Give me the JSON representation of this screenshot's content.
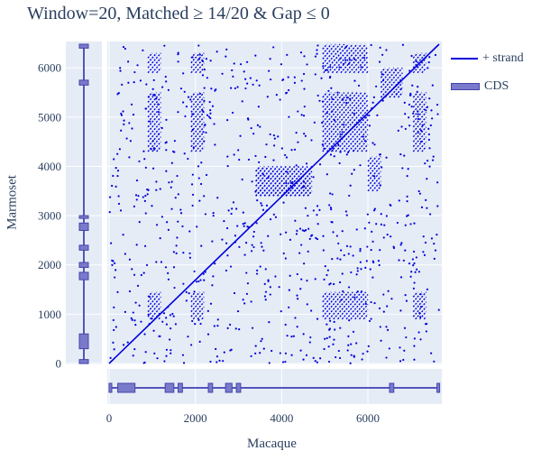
{
  "title": "Window=20, Matched ≥ 14/20 & Gap ≤ 0",
  "chart_data": {
    "type": "scatter",
    "xlabel": "Macaque",
    "ylabel": "Marmoset",
    "xlim": [
      0,
      7650
    ],
    "ylim": [
      0,
      6480
    ],
    "xticks": [
      "0",
      "2000",
      "4000",
      "6000"
    ],
    "xtick_values": [
      0,
      2000,
      4000,
      6000
    ],
    "yticks": [
      "0",
      "1000",
      "2000",
      "3000",
      "4000",
      "5000",
      "6000"
    ],
    "ytick_values": [
      0,
      1000,
      2000,
      3000,
      4000,
      5000,
      6000
    ],
    "legend": [
      {
        "name": "+ strand",
        "color": "#0000dd"
      },
      {
        "name": "CDS",
        "color": "#7a7acc"
      }
    ],
    "main_diagonal": {
      "x": [
        0,
        7650
      ],
      "y": [
        0,
        6480
      ]
    },
    "repeat_blocks": [
      {
        "x": [
          3400,
          4700
        ],
        "y": [
          3400,
          4000
        ],
        "spacing": 100
      },
      {
        "x": [
          4950,
          6000
        ],
        "y": [
          4300,
          5500
        ],
        "spacing": 100
      },
      {
        "x": [
          4950,
          6000
        ],
        "y": [
          900,
          1450
        ],
        "spacing": 100
      },
      {
        "x": [
          4950,
          6000
        ],
        "y": [
          5900,
          6480
        ],
        "spacing": 100
      },
      {
        "x": [
          900,
          1200
        ],
        "y": [
          4300,
          5500
        ],
        "spacing": 100
      },
      {
        "x": [
          1900,
          2200
        ],
        "y": [
          4300,
          5500
        ],
        "spacing": 100
      },
      {
        "x": [
          7050,
          7350
        ],
        "y": [
          4300,
          5500
        ],
        "spacing": 100
      },
      {
        "x": [
          900,
          1200
        ],
        "y": [
          900,
          1450
        ],
        "spacing": 100
      },
      {
        "x": [
          1900,
          2200
        ],
        "y": [
          900,
          1450
        ],
        "spacing": 100
      },
      {
        "x": [
          7050,
          7350
        ],
        "y": [
          900,
          1450
        ],
        "spacing": 100
      },
      {
        "x": [
          3400,
          4700
        ],
        "y": [
          3400,
          4000
        ],
        "spacing": 100
      },
      {
        "x": [
          900,
          1200
        ],
        "y": [
          5900,
          6300
        ],
        "spacing": 100
      },
      {
        "x": [
          1900,
          2200
        ],
        "y": [
          5900,
          6300
        ],
        "spacing": 100
      },
      {
        "x": [
          7050,
          7350
        ],
        "y": [
          5900,
          6300
        ],
        "spacing": 100
      },
      {
        "x": [
          6300,
          6800
        ],
        "y": [
          5400,
          6000
        ],
        "spacing": 100
      },
      {
        "x": [
          6000,
          6300
        ],
        "y": [
          3500,
          4200
        ],
        "spacing": 100
      }
    ],
    "noise_point_count": 900,
    "cds_x": [
      [
        0,
        50
      ],
      [
        200,
        600
      ],
      [
        1300,
        1500
      ],
      [
        1600,
        1700
      ],
      [
        2300,
        2400
      ],
      [
        2700,
        2850
      ],
      [
        2950,
        3050
      ],
      [
        6500,
        6600
      ],
      [
        7600,
        7650
      ]
    ],
    "cds_y": [
      [
        0,
        80
      ],
      [
        300,
        600
      ],
      [
        1700,
        1850
      ],
      [
        1950,
        2050
      ],
      [
        2300,
        2400
      ],
      [
        2700,
        2850
      ],
      [
        2950,
        3000
      ],
      [
        5650,
        5750
      ],
      [
        6400,
        6480
      ]
    ]
  }
}
